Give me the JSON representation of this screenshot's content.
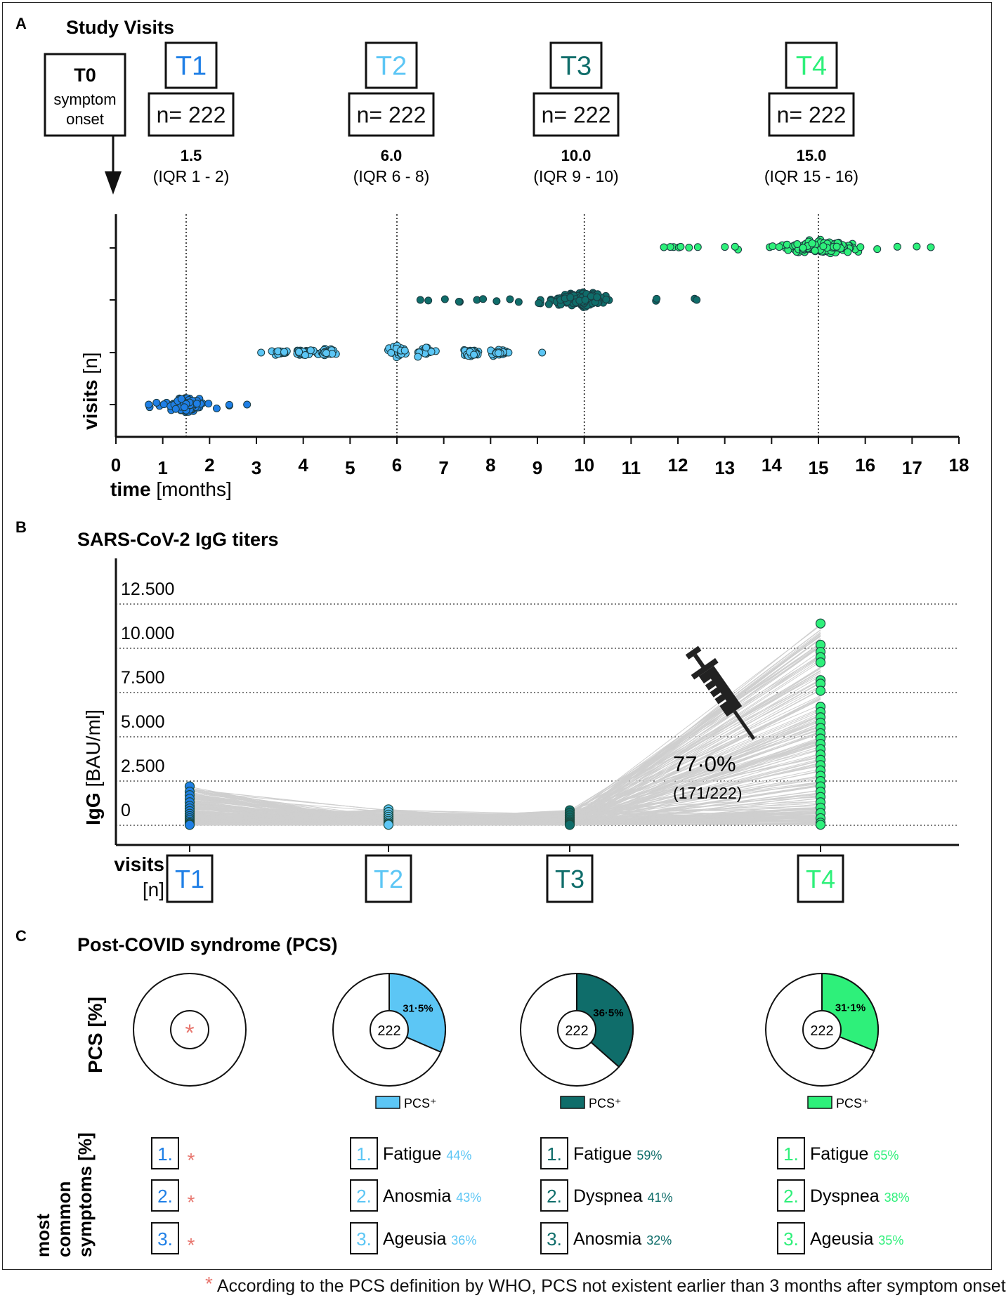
{
  "colors": {
    "T1": "#1f7fe6",
    "T2": "#5cc6f5",
    "T3": "#0f6d6a",
    "T4": "#2ef07a",
    "asterisk": "#e8776f",
    "link_lines": "#cfcfcf",
    "text": "#111111"
  },
  "panel_a": {
    "letter": "A",
    "title": "Study Visits",
    "t0": {
      "label": "T0",
      "line1": "symptom",
      "line2": "onset"
    },
    "visits": [
      {
        "label": "T1",
        "n_label": "n= 222",
        "median": "1.5",
        "iqr": "(IQR 1 - 2)"
      },
      {
        "label": "T2",
        "n_label": "n= 222",
        "median": "6.0",
        "iqr": "(IQR 6 - 8)"
      },
      {
        "label": "T3",
        "n_label": "n= 222",
        "median": "10.0",
        "iqr": "(IQR 9 - 10)"
      },
      {
        "label": "T4",
        "n_label": "n= 222",
        "median": "15.0",
        "iqr": "(IQR 15 - 16)"
      }
    ],
    "ylabel_bold": "visits",
    "ylabel_unit": "[n]",
    "xlabel_bold": "time",
    "xlabel_unit": "[months]"
  },
  "panel_b": {
    "letter": "B",
    "title": "SARS-CoV-2 IgG titers",
    "ylabel_bold": "IgG",
    "ylabel_unit": "[BAU/ml]",
    "xlabel_bold": "visits",
    "xlabel_unit": "[n]",
    "vaccination_pct": "77·0%",
    "vaccination_frac": "(171/222)",
    "visit_labels": [
      "T1",
      "T2",
      "T3",
      "T4"
    ]
  },
  "panel_c": {
    "letter": "C",
    "title": "Post-COVID syndrome (PCS)",
    "ylabel_pcs": "PCS [%]",
    "ylabel_symptoms_1": "most",
    "ylabel_symptoms_2": "common",
    "ylabel_symptoms_3": "symptoms [%]",
    "asterisk": "*",
    "center_n": "222",
    "legend_label": "PCS⁺",
    "pies": [
      {
        "visit": "T1",
        "percent": null,
        "label": ""
      },
      {
        "visit": "T2",
        "percent": 31.5,
        "label": "31·5%"
      },
      {
        "visit": "T3",
        "percent": 36.5,
        "label": "36·5%"
      },
      {
        "visit": "T4",
        "percent": 31.1,
        "label": "31·1%"
      }
    ],
    "symptoms": [
      {
        "visit": "T1",
        "items": [
          {
            "rank": "1.",
            "name": "",
            "pct": ""
          },
          {
            "rank": "2.",
            "name": "",
            "pct": ""
          },
          {
            "rank": "3.",
            "name": "",
            "pct": ""
          }
        ]
      },
      {
        "visit": "T2",
        "items": [
          {
            "rank": "1.",
            "name": "Fatigue",
            "pct": "44%"
          },
          {
            "rank": "2.",
            "name": "Anosmia",
            "pct": "43%"
          },
          {
            "rank": "3.",
            "name": "Ageusia",
            "pct": "36%"
          }
        ]
      },
      {
        "visit": "T3",
        "items": [
          {
            "rank": "1.",
            "name": "Fatigue",
            "pct": "59%"
          },
          {
            "rank": "2.",
            "name": "Dyspnea",
            "pct": "41%"
          },
          {
            "rank": "3.",
            "name": "Anosmia",
            "pct": "32%"
          }
        ]
      },
      {
        "visit": "T4",
        "items": [
          {
            "rank": "1.",
            "name": "Fatigue",
            "pct": "65%"
          },
          {
            "rank": "2.",
            "name": "Dyspnea",
            "pct": "38%"
          },
          {
            "rank": "3.",
            "name": "Ageusia",
            "pct": "35%"
          }
        ]
      }
    ]
  },
  "footnote": {
    "star": "*",
    "text": "According to the PCS definition by WHO, PCS not existent earlier than 3 months after symptom onset"
  },
  "chart_data": [
    {
      "type": "scatter",
      "title": "Study Visits",
      "xlabel": "time [months]",
      "ylabel": "visits [n]",
      "xlim": [
        0,
        18
      ],
      "xticks": [
        0,
        1,
        2,
        3,
        4,
        5,
        6,
        7,
        8,
        9,
        10,
        11,
        12,
        13,
        14,
        15,
        16,
        17,
        18
      ],
      "median_lines": [
        1.5,
        6,
        10,
        15
      ],
      "series": [
        {
          "name": "T1",
          "n": 222,
          "median": 1.5,
          "range": [
            0.7,
            2.8
          ],
          "iqr": [
            1,
            2
          ]
        },
        {
          "name": "T2",
          "n": 222,
          "median": 6.0,
          "range": [
            3.1,
            9.1
          ],
          "iqr": [
            6,
            8
          ]
        },
        {
          "name": "T3",
          "n": 222,
          "median": 10.0,
          "range": [
            6.5,
            12.4
          ],
          "iqr": [
            9,
            10
          ]
        },
        {
          "name": "T4",
          "n": 222,
          "median": 15.0,
          "range": [
            11.7,
            17.4
          ],
          "iqr": [
            15,
            16
          ]
        }
      ]
    },
    {
      "type": "scatter",
      "title": "SARS-CoV-2 IgG titers",
      "xlabel": "visits [n]",
      "ylabel": "IgG [BAU/ml]",
      "ylim": [
        0,
        13000
      ],
      "yticks": [
        0,
        2500,
        5000,
        7500,
        10000,
        12500
      ],
      "ytick_labels": [
        "0",
        "2.500",
        "5.000",
        "7.500",
        "10.000",
        "12.500"
      ],
      "categories": [
        "T1",
        "T2",
        "T3",
        "T4"
      ],
      "series": [
        {
          "name": "T1",
          "max": 2200,
          "values": [
            2200,
            1900,
            1700,
            1500,
            1300,
            1100,
            950,
            800,
            650,
            520,
            400,
            300,
            200,
            120,
            60,
            20
          ]
        },
        {
          "name": "T2",
          "max": 900,
          "values": [
            900,
            750,
            600,
            480,
            360,
            250,
            150,
            80,
            30
          ]
        },
        {
          "name": "T3",
          "max": 850,
          "values": [
            850,
            700,
            560,
            430,
            320,
            220,
            140,
            70,
            20
          ]
        },
        {
          "name": "T4",
          "max": 11400,
          "values": [
            11400,
            10200,
            9800,
            9500,
            9200,
            8200,
            8000,
            7600,
            6700,
            6400,
            6100,
            5800,
            5500,
            5200,
            4900,
            4600,
            4300,
            4000,
            3700,
            3400,
            3100,
            2800,
            2500,
            2200,
            1900,
            1600,
            1300,
            1000,
            700,
            400,
            150,
            30
          ]
        }
      ],
      "annotation": "77·0% (171/222)"
    },
    {
      "type": "pie",
      "title": "Post-COVID syndrome (PCS)",
      "categories": [
        "T1",
        "T2",
        "T3",
        "T4"
      ],
      "series": [
        {
          "name": "PCS+",
          "values": [
            null,
            31.5,
            36.5,
            31.1
          ]
        }
      ],
      "n": 222
    }
  ]
}
